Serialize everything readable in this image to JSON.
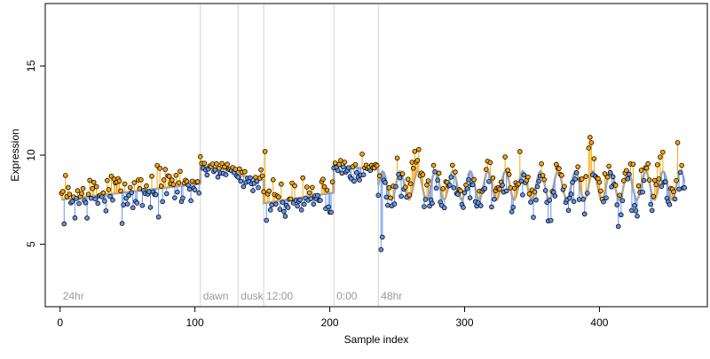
{
  "chart_data": {
    "type": "scatter",
    "title": "",
    "xlabel": "Sample index",
    "ylabel": "Expression",
    "xlim": [
      -11,
      480
    ],
    "ylim": [
      1.5,
      18.5
    ],
    "x_ticks": [
      0,
      100,
      200,
      300,
      400
    ],
    "y_ticks": [
      5,
      10,
      15
    ],
    "grid": false,
    "legend": "none",
    "colors": {
      "above_fit": "#ffa500",
      "below_fit": "#6495ed",
      "fit_line": "#a9a9a9",
      "region_line": "#d3d3d3",
      "region_text": "#9a9a9a",
      "point_stroke": "#000000"
    },
    "regions": [
      {
        "x": 0,
        "label": "24hr"
      },
      {
        "x": 104,
        "label": "dawn"
      },
      {
        "x": 132,
        "label": "dusk"
      },
      {
        "x": 151,
        "label": "12:00"
      },
      {
        "x": 203,
        "label": "0:00"
      },
      {
        "x": 236,
        "label": "48hr"
      }
    ],
    "segments": [
      {
        "x0": 1,
        "x1": 104,
        "type": "flat",
        "base": 7.5,
        "end": 8.4,
        "noise": 0.9
      },
      {
        "x0": 104,
        "x1": 132,
        "type": "flat",
        "base": 9.4,
        "end": 9.1,
        "noise": 0.35
      },
      {
        "x0": 132,
        "x1": 151,
        "type": "flat",
        "base": 8.9,
        "end": 8.6,
        "noise": 0.5
      },
      {
        "x0": 151,
        "x1": 203,
        "type": "flat",
        "base": 7.3,
        "end": 7.9,
        "noise": 0.7
      },
      {
        "x0": 203,
        "x1": 236,
        "type": "flat",
        "base": 9.4,
        "end": 9.2,
        "noise": 0.5
      },
      {
        "x0": 236,
        "x1": 463,
        "type": "wave",
        "base": 8.3,
        "amp": 0.8,
        "period": 13,
        "noise": 0.85
      }
    ],
    "outliers": [
      {
        "x": 152,
        "y": 10.2
      },
      {
        "x": 201,
        "y": 6.8
      },
      {
        "x": 238,
        "y": 4.7
      },
      {
        "x": 239,
        "y": 5.4
      },
      {
        "x": 261,
        "y": 9.6
      },
      {
        "x": 341,
        "y": 10.2
      },
      {
        "x": 392,
        "y": 10.4
      },
      {
        "x": 393,
        "y": 11.0
      },
      {
        "x": 394,
        "y": 10.7
      },
      {
        "x": 414,
        "y": 6.0
      },
      {
        "x": 458,
        "y": 10.7
      }
    ],
    "seed": 7
  }
}
